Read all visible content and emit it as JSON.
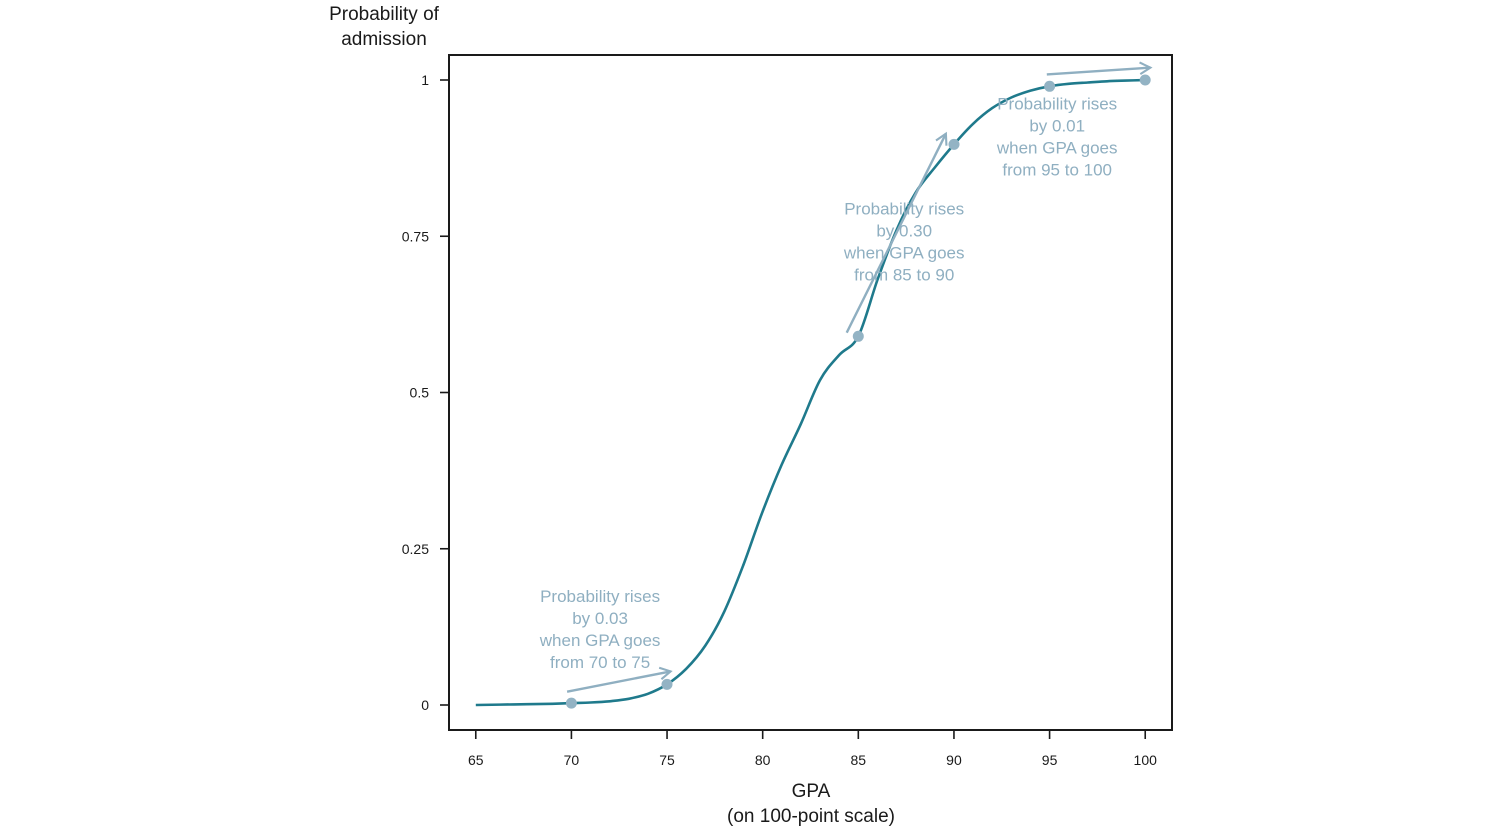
{
  "chart_data": {
    "type": "line",
    "title": "",
    "xlabel": "GPA",
    "xlabel_sub": "(on 100-point scale)",
    "ylabel_line1": "Probability of",
    "ylabel_line2": "admission",
    "xlim": [
      63.6,
      101.4
    ],
    "ylim": [
      -0.04,
      1.04
    ],
    "x_ticks": [
      65,
      70,
      75,
      80,
      85,
      90,
      95,
      100
    ],
    "x_tick_labels": [
      "65",
      "70",
      "75",
      "80",
      "85",
      "90",
      "95",
      "100"
    ],
    "y_ticks": [
      0,
      0.25,
      0.5,
      0.75,
      1
    ],
    "y_tick_labels": [
      "0",
      "0.25",
      "0.5",
      "0.75",
      "1"
    ],
    "grid": false,
    "series": [
      {
        "x": [
          65,
          67,
          69,
          70,
          71,
          72,
          73,
          74,
          75,
          76,
          77,
          78,
          79,
          80,
          81,
          82,
          83,
          84,
          85,
          86,
          87,
          88,
          89,
          90,
          91,
          92,
          93,
          94,
          95,
          96,
          97,
          98,
          99,
          100
        ],
        "y": [
          0.0,
          0.001,
          0.002,
          0.003,
          0.004,
          0.006,
          0.01,
          0.018,
          0.033,
          0.058,
          0.095,
          0.15,
          0.225,
          0.31,
          0.385,
          0.45,
          0.52,
          0.56,
          0.59,
          0.68,
          0.76,
          0.82,
          0.86,
          0.897,
          0.93,
          0.955,
          0.972,
          0.983,
          0.99,
          0.994,
          0.996,
          0.998,
          0.999,
          1.0
        ]
      }
    ],
    "points": [
      {
        "x": 70,
        "y": 0.003
      },
      {
        "x": 75,
        "y": 0.033
      },
      {
        "x": 85,
        "y": 0.59
      },
      {
        "x": 90,
        "y": 0.897
      },
      {
        "x": 95,
        "y": 0.99
      },
      {
        "x": 100,
        "y": 1.0
      }
    ],
    "annotations": [
      {
        "lines": [
          "Probability rises",
          "by 0.03",
          "when GPA goes",
          "from 70 to 75"
        ],
        "from": {
          "x": 70,
          "y": 0.003
        },
        "to": {
          "x": 75,
          "y": 0.033
        },
        "anchor": {
          "x": 71.5,
          "y": 0.165
        }
      },
      {
        "lines": [
          "Probability rises",
          "by 0.30",
          "when GPA goes",
          "from 85 to 90"
        ],
        "from": {
          "x": 85,
          "y": 0.59
        },
        "to": {
          "x": 90,
          "y": 0.897
        },
        "anchor": {
          "x": 87.4,
          "y": 0.785
        }
      },
      {
        "lines": [
          "Probability rises",
          "by 0.01",
          "when GPA goes",
          "from 95 to 100"
        ],
        "from": {
          "x": 95,
          "y": 0.99
        },
        "to": {
          "x": 100,
          "y": 1.0
        },
        "anchor": {
          "x": 95.4,
          "y": 0.953
        }
      }
    ],
    "colors": {
      "curve": "#1f7a8c",
      "points": "#93b3c4",
      "annotation": "#8fafc1",
      "axis": "#1a1a1a"
    }
  }
}
